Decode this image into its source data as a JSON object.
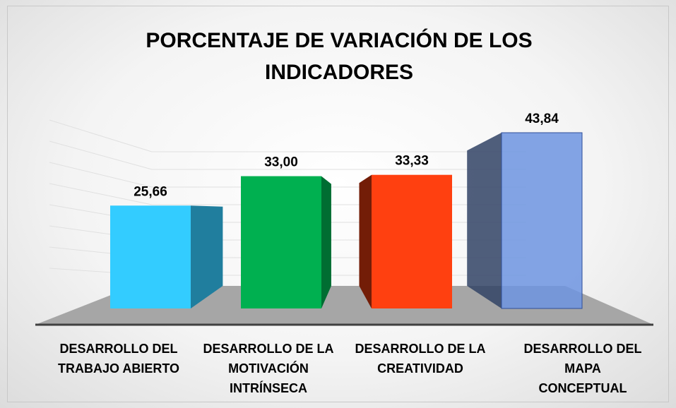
{
  "chart_data": {
    "type": "bar3d",
    "title": "PORCENTAJE DE VARIACIÓN DE LOS INDICADORES",
    "categories": [
      "DESARROLLO DEL TRABAJO ABIERTO",
      "DESARROLLO DE LA MOTIVACIÓN INTRÍNSECA",
      "DESARROLLO DE LA CREATIVIDAD",
      "DESARROLLO DEL MAPA CONCEPTUAL"
    ],
    "values": [
      25.66,
      33.0,
      33.33,
      43.84
    ],
    "value_labels": [
      "25,66",
      "33,00",
      "33,33",
      "43,84"
    ],
    "colors": [
      "#33ccff",
      "#00b050",
      "#ff4010",
      "#6d94e0"
    ]
  }
}
